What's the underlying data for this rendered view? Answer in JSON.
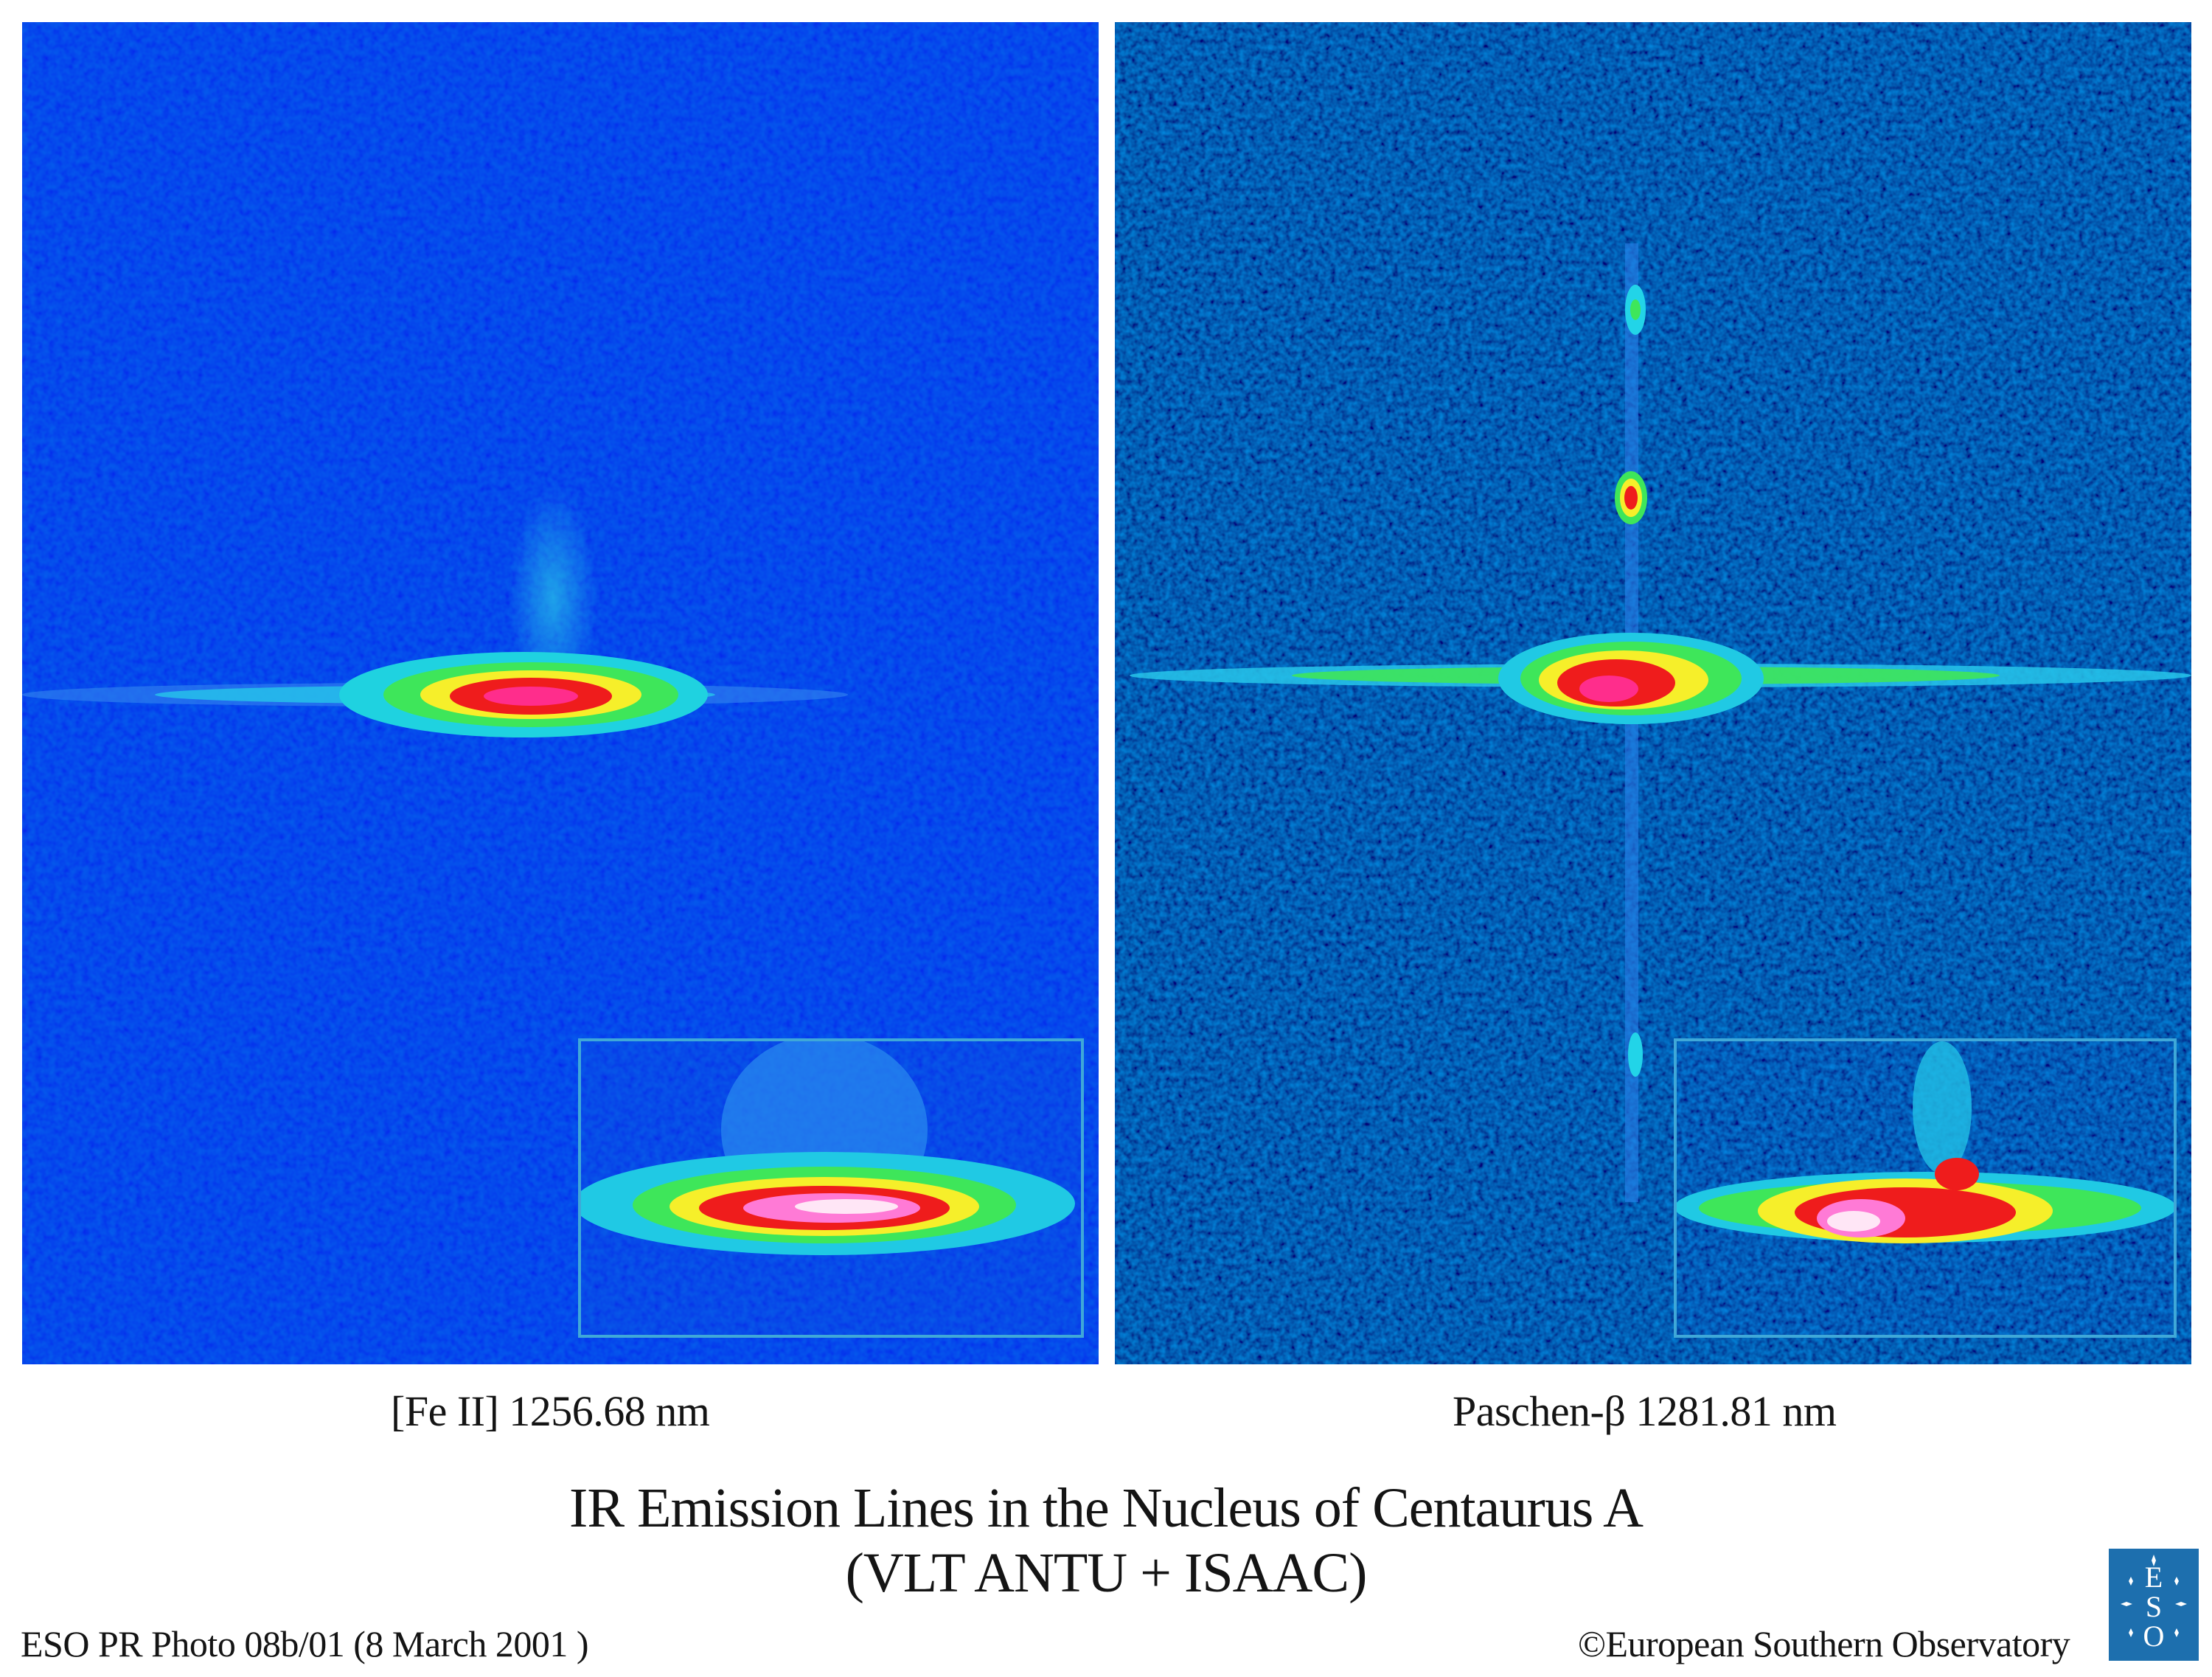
{
  "panels": [
    {
      "id": "fe-ii",
      "caption": "[Fe II]   1256.68 nm"
    },
    {
      "id": "paschen-beta",
      "caption": "Paschen-β  1281.81 nm"
    }
  ],
  "title": {
    "main": "IR Emission Lines in the Nucleus of Centaurus A",
    "sub": "(VLT ANTU + ISAAC)"
  },
  "footer": {
    "photo_id": "ESO PR Photo 08b/01 (8 March 2001 )",
    "copyright": "©European Southern Observatory"
  },
  "logo": {
    "text": "ESO",
    "colors": {
      "background": "#1d6fae",
      "foreground": "#ffffff"
    }
  },
  "colors": {
    "background_noise": "#0a1fd8",
    "emission_cyan": "#22d4e8",
    "emission_green": "#3ee65a",
    "emission_yellow": "#f6ef2a",
    "emission_red": "#ef1c1c",
    "emission_core": "#ff8ad8",
    "inset_border": "#3fa8d8"
  }
}
